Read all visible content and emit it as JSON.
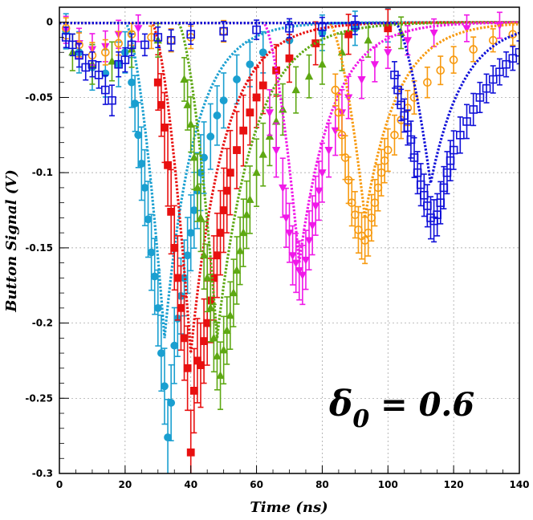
{
  "chart_data": {
    "type": "scatter",
    "title": "",
    "xlabel": "Time (ns)",
    "ylabel": "Button Signal (V)",
    "xlim": [
      0,
      140
    ],
    "ylim": [
      -0.3,
      0.01
    ],
    "grid": true,
    "legend": "none",
    "x_ticks": [
      0,
      20,
      40,
      60,
      80,
      100,
      120,
      140
    ],
    "y_ticks": [
      0,
      -0.05,
      -0.1,
      -0.15,
      -0.2,
      -0.25,
      -0.3
    ],
    "x_tick_labels": [
      "0",
      "20",
      "40",
      "60",
      "80",
      "100",
      "120",
      "140"
    ],
    "y_tick_labels": [
      "0",
      "-0.05",
      "-0.1",
      "-0.15",
      "-0.2",
      "-0.25",
      "-0.3"
    ],
    "annotation": {
      "symbol": "δ",
      "subscript": "0",
      "text": " = 0.6"
    },
    "series": [
      {
        "color": "#1a9fd0",
        "marker": "filled-circle",
        "model": {
          "t0": 20,
          "tmin": 32,
          "depth": -0.21,
          "rise": 3.5,
          "decay": 9
        },
        "points": [
          [
            2,
            -0.006
          ],
          [
            6,
            -0.02
          ],
          [
            10,
            -0.03
          ],
          [
            14,
            -0.034
          ],
          [
            18,
            -0.028
          ],
          [
            20,
            -0.02
          ],
          [
            22,
            -0.04
          ],
          [
            23,
            -0.054
          ],
          [
            24,
            -0.075
          ],
          [
            25,
            -0.094
          ],
          [
            26,
            -0.11
          ],
          [
            27,
            -0.131
          ],
          [
            28,
            -0.153
          ],
          [
            29,
            -0.169
          ],
          [
            30,
            -0.19
          ],
          [
            31,
            -0.22
          ],
          [
            32,
            -0.242
          ],
          [
            33,
            -0.276
          ],
          [
            34,
            -0.253
          ],
          [
            35,
            -0.215
          ],
          [
            36,
            -0.197
          ],
          [
            37,
            -0.182
          ],
          [
            38,
            -0.17
          ],
          [
            39,
            -0.155
          ],
          [
            40,
            -0.14
          ],
          [
            41,
            -0.125
          ],
          [
            42,
            -0.112
          ],
          [
            43,
            -0.1
          ],
          [
            44,
            -0.09
          ],
          [
            46,
            -0.076
          ],
          [
            48,
            -0.062
          ],
          [
            50,
            -0.052
          ],
          [
            54,
            -0.038
          ],
          [
            58,
            -0.028
          ],
          [
            62,
            -0.02
          ],
          [
            70,
            -0.012
          ],
          [
            80,
            -0.007
          ],
          [
            90,
            -0.004
          ],
          [
            100,
            -0.002
          ]
        ],
        "errors": 0.018
      },
      {
        "color": "#e81010",
        "marker": "filled-square",
        "model": {
          "t0": 28,
          "tmin": 40,
          "depth": -0.22,
          "rise": 3.5,
          "decay": 10
        },
        "points": [
          [
            30,
            -0.04
          ],
          [
            31,
            -0.055
          ],
          [
            32,
            -0.07
          ],
          [
            33,
            -0.095
          ],
          [
            34,
            -0.126
          ],
          [
            35,
            -0.15
          ],
          [
            36,
            -0.17
          ],
          [
            37,
            -0.19
          ],
          [
            38,
            -0.21
          ],
          [
            39,
            -0.23
          ],
          [
            40,
            -0.286
          ],
          [
            41,
            -0.245
          ],
          [
            42,
            -0.225
          ],
          [
            43,
            -0.228
          ],
          [
            44,
            -0.212
          ],
          [
            45,
            -0.2
          ],
          [
            46,
            -0.185
          ],
          [
            47,
            -0.17
          ],
          [
            48,
            -0.155
          ],
          [
            49,
            -0.14
          ],
          [
            50,
            -0.125
          ],
          [
            51,
            -0.112
          ],
          [
            52,
            -0.1
          ],
          [
            54,
            -0.085
          ],
          [
            56,
            -0.072
          ],
          [
            58,
            -0.06
          ],
          [
            60,
            -0.05
          ],
          [
            62,
            -0.042
          ],
          [
            66,
            -0.032
          ],
          [
            70,
            -0.024
          ],
          [
            78,
            -0.014
          ],
          [
            88,
            -0.008
          ],
          [
            100,
            -0.004
          ]
        ],
        "errors": 0.02
      },
      {
        "color": "#5ea813",
        "marker": "filled-triangle",
        "model": {
          "t0": 36,
          "tmin": 48,
          "depth": -0.21,
          "rise": 3.5,
          "decay": 11
        },
        "points": [
          [
            4,
            -0.02
          ],
          [
            10,
            -0.028
          ],
          [
            16,
            -0.026
          ],
          [
            22,
            -0.018
          ],
          [
            30,
            -0.012
          ],
          [
            38,
            -0.038
          ],
          [
            39,
            -0.055
          ],
          [
            40,
            -0.068
          ],
          [
            41,
            -0.09
          ],
          [
            42,
            -0.11
          ],
          [
            43,
            -0.13
          ],
          [
            44,
            -0.155
          ],
          [
            45,
            -0.17
          ],
          [
            46,
            -0.19
          ],
          [
            47,
            -0.21
          ],
          [
            48,
            -0.222
          ],
          [
            49,
            -0.235
          ],
          [
            50,
            -0.218
          ],
          [
            51,
            -0.205
          ],
          [
            52,
            -0.195
          ],
          [
            53,
            -0.18
          ],
          [
            54,
            -0.165
          ],
          [
            55,
            -0.152
          ],
          [
            56,
            -0.14
          ],
          [
            57,
            -0.128
          ],
          [
            58,
            -0.118
          ],
          [
            60,
            -0.1
          ],
          [
            62,
            -0.088
          ],
          [
            64,
            -0.076
          ],
          [
            66,
            -0.066
          ],
          [
            68,
            -0.058
          ],
          [
            72,
            -0.045
          ],
          [
            76,
            -0.036
          ],
          [
            80,
            -0.028
          ],
          [
            86,
            -0.02
          ],
          [
            94,
            -0.012
          ],
          [
            104,
            -0.007
          ]
        ],
        "errors": 0.016
      },
      {
        "color": "#f018e8",
        "marker": "filled-triangle-down",
        "model": {
          "t0": 62,
          "tmin": 73,
          "depth": -0.16,
          "rise": 3.5,
          "decay": 10
        },
        "points": [
          [
            2,
            -0.005
          ],
          [
            6,
            -0.014
          ],
          [
            10,
            -0.018
          ],
          [
            14,
            -0.016
          ],
          [
            18,
            -0.008
          ],
          [
            24,
            -0.004
          ],
          [
            64,
            -0.06
          ],
          [
            66,
            -0.085
          ],
          [
            68,
            -0.11
          ],
          [
            69,
            -0.13
          ],
          [
            70,
            -0.14
          ],
          [
            71,
            -0.155
          ],
          [
            72,
            -0.16
          ],
          [
            73,
            -0.165
          ],
          [
            74,
            -0.168
          ],
          [
            75,
            -0.158
          ],
          [
            76,
            -0.145
          ],
          [
            77,
            -0.135
          ],
          [
            78,
            -0.122
          ],
          [
            79,
            -0.112
          ],
          [
            80,
            -0.1
          ],
          [
            82,
            -0.085
          ],
          [
            84,
            -0.072
          ],
          [
            86,
            -0.06
          ],
          [
            88,
            -0.05
          ],
          [
            92,
            -0.038
          ],
          [
            96,
            -0.028
          ],
          [
            100,
            -0.02
          ],
          [
            106,
            -0.012
          ],
          [
            114,
            -0.007
          ],
          [
            124,
            -0.004
          ],
          [
            134,
            -0.002
          ]
        ],
        "errors": 0.014
      },
      {
        "color": "#f79a10",
        "marker": "open-circle",
        "model": {
          "t0": 82,
          "tmin": 93,
          "depth": -0.13,
          "rise": 3.5,
          "decay": 10
        },
        "points": [
          [
            2,
            -0.004
          ],
          [
            6,
            -0.015
          ],
          [
            10,
            -0.022
          ],
          [
            14,
            -0.02
          ],
          [
            18,
            -0.014
          ],
          [
            22,
            -0.008
          ],
          [
            28,
            -0.01
          ],
          [
            34,
            -0.012
          ],
          [
            40,
            -0.01
          ],
          [
            50,
            -0.006
          ],
          [
            84,
            -0.045
          ],
          [
            85,
            -0.06
          ],
          [
            86,
            -0.075
          ],
          [
            87,
            -0.09
          ],
          [
            88,
            -0.105
          ],
          [
            89,
            -0.12
          ],
          [
            90,
            -0.128
          ],
          [
            91,
            -0.138
          ],
          [
            92,
            -0.142
          ],
          [
            93,
            -0.145
          ],
          [
            94,
            -0.14
          ],
          [
            95,
            -0.13
          ],
          [
            96,
            -0.12
          ],
          [
            97,
            -0.11
          ],
          [
            98,
            -0.1
          ],
          [
            99,
            -0.092
          ],
          [
            100,
            -0.085
          ],
          [
            102,
            -0.075
          ],
          [
            104,
            -0.065
          ],
          [
            106,
            -0.057
          ],
          [
            108,
            -0.05
          ],
          [
            112,
            -0.04
          ],
          [
            116,
            -0.032
          ],
          [
            120,
            -0.025
          ],
          [
            126,
            -0.018
          ],
          [
            132,
            -0.012
          ],
          [
            138,
            -0.008
          ]
        ],
        "errors": 0.011
      },
      {
        "color": "#1010d8",
        "marker": "open-square",
        "model": {
          "t0": 102,
          "tmin": 113,
          "depth": -0.107,
          "rise": 3.5,
          "decay": 10
        },
        "points": [
          [
            2,
            -0.01
          ],
          [
            4,
            -0.015
          ],
          [
            6,
            -0.022
          ],
          [
            8,
            -0.03
          ],
          [
            10,
            -0.028
          ],
          [
            12,
            -0.035
          ],
          [
            14,
            -0.045
          ],
          [
            16,
            -0.052
          ],
          [
            18,
            -0.028
          ],
          [
            20,
            -0.025
          ],
          [
            22,
            -0.015
          ],
          [
            26,
            -0.015
          ],
          [
            30,
            -0.01
          ],
          [
            34,
            -0.012
          ],
          [
            40,
            -0.008
          ],
          [
            50,
            -0.006
          ],
          [
            60,
            -0.005
          ],
          [
            70,
            -0.004
          ],
          [
            80,
            -0.003
          ],
          [
            90,
            -0.002
          ],
          [
            102,
            -0.035
          ],
          [
            103,
            -0.045
          ],
          [
            104,
            -0.055
          ],
          [
            105,
            -0.062
          ],
          [
            106,
            -0.07
          ],
          [
            107,
            -0.078
          ],
          [
            108,
            -0.09
          ],
          [
            109,
            -0.1
          ],
          [
            110,
            -0.108
          ],
          [
            111,
            -0.115
          ],
          [
            112,
            -0.122
          ],
          [
            113,
            -0.13
          ],
          [
            114,
            -0.132
          ],
          [
            115,
            -0.128
          ],
          [
            116,
            -0.12
          ],
          [
            117,
            -0.11
          ],
          [
            118,
            -0.1
          ],
          [
            119,
            -0.092
          ],
          [
            120,
            -0.085
          ],
          [
            122,
            -0.075
          ],
          [
            124,
            -0.066
          ],
          [
            126,
            -0.058
          ],
          [
            128,
            -0.05
          ],
          [
            130,
            -0.044
          ],
          [
            132,
            -0.038
          ],
          [
            134,
            -0.033
          ],
          [
            136,
            -0.028
          ],
          [
            138,
            -0.024
          ],
          [
            140,
            -0.02
          ]
        ],
        "errors": 0.01
      }
    ]
  }
}
